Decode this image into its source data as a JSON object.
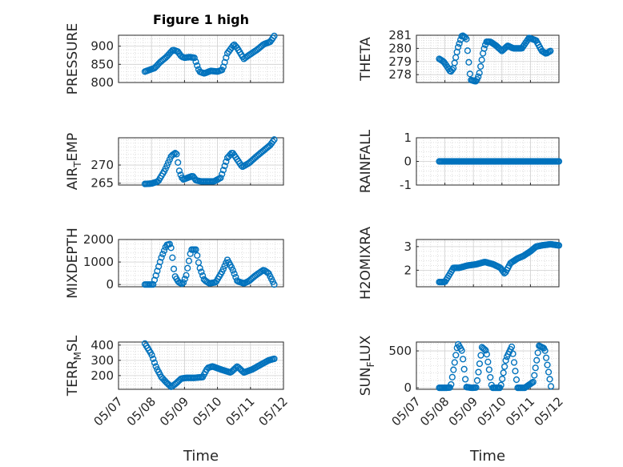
{
  "figure": {
    "title": "Figure 1 high",
    "marker_color": "#0072BD"
  },
  "chart_data": [
    {
      "type": "scatter",
      "id": "pressure",
      "title": "Figure 1 high",
      "ylabel": "PRESSURE",
      "ylim": [
        800,
        930
      ],
      "yticks": [
        800,
        850,
        900
      ],
      "ytick_labels": [
        "800",
        "850",
        "900"
      ],
      "xlim": [
        0,
        5
      ],
      "xticks": [
        0,
        1,
        2,
        3,
        4,
        5
      ],
      "xtick_labels": [
        "05/07",
        "05/08",
        "05/09",
        "05/10",
        "05/11",
        "05/12"
      ],
      "x_label_shown": false,
      "x_knots": [
        0.8,
        1.1,
        1.25,
        1.45,
        1.65,
        1.8,
        1.9,
        2.0,
        2.15,
        2.3,
        2.45,
        2.6,
        2.8,
        3.0,
        3.15,
        3.3,
        3.5,
        3.6,
        3.8,
        3.95,
        4.2,
        4.4,
        4.6,
        4.72
      ],
      "y_knots": [
        830,
        840,
        855,
        870,
        890,
        885,
        872,
        868,
        870,
        868,
        830,
        825,
        832,
        830,
        835,
        880,
        905,
        895,
        865,
        875,
        890,
        905,
        912,
        928
      ]
    },
    {
      "type": "scatter",
      "id": "theta",
      "ylabel": "THETA",
      "ylim": [
        277.4,
        281
      ],
      "yticks": [
        278,
        279,
        280,
        281
      ],
      "ytick_labels": [
        "278",
        "279",
        "280",
        "281"
      ],
      "xlim": [
        0,
        5
      ],
      "xticks": [
        0,
        1,
        2,
        3,
        4,
        5
      ],
      "xtick_labels": [
        "05/07",
        "05/08",
        "05/09",
        "05/10",
        "05/11",
        "05/12"
      ],
      "x_label_shown": false,
      "x_knots": [
        0.8,
        0.95,
        1.05,
        1.2,
        1.3,
        1.45,
        1.6,
        1.75,
        1.9,
        2.05,
        2.1,
        2.2,
        2.35,
        2.45,
        2.6,
        2.8,
        3.0,
        3.2,
        3.4,
        3.7,
        3.95,
        4.2,
        4.4,
        4.55,
        4.7
      ],
      "y_knots": [
        279.2,
        279.0,
        278.7,
        278.2,
        278.5,
        280.0,
        281.0,
        280.8,
        277.6,
        277.5,
        277.5,
        278.0,
        279.8,
        280.5,
        280.5,
        280.2,
        279.8,
        280.2,
        280.0,
        280.0,
        280.8,
        280.6,
        279.8,
        279.6,
        279.8
      ]
    },
    {
      "type": "scatter",
      "id": "air_temp",
      "ylabel": "AIR_TEMP",
      "ylim": [
        264.5,
        277.5
      ],
      "yticks": [
        265,
        270
      ],
      "ytick_labels": [
        "265",
        "270"
      ],
      "xlim": [
        0,
        5
      ],
      "xticks": [
        0,
        1,
        2,
        3,
        4,
        5
      ],
      "xtick_labels": [
        "05/07",
        "05/08",
        "05/09",
        "05/10",
        "05/11",
        "05/12"
      ],
      "x_label_shown": false,
      "x_knots": [
        0.8,
        1.0,
        1.2,
        1.4,
        1.6,
        1.75,
        1.85,
        1.95,
        2.1,
        2.25,
        2.35,
        2.5,
        2.7,
        2.9,
        3.1,
        3.3,
        3.45,
        3.6,
        3.75,
        3.95,
        4.2,
        4.4,
        4.6,
        4.72
      ],
      "y_knots": [
        264.8,
        264.9,
        265.5,
        268.5,
        272.5,
        273.5,
        268.0,
        266.0,
        266.5,
        267.0,
        265.8,
        265.5,
        265.5,
        265.5,
        266.5,
        272.0,
        273.5,
        271.5,
        269.5,
        270.5,
        272.5,
        274.0,
        275.5,
        277.0
      ]
    },
    {
      "type": "scatter",
      "id": "rainfall",
      "ylabel": "RAINFALL",
      "ylim": [
        -1,
        1
      ],
      "yticks": [
        -1,
        0,
        1
      ],
      "ytick_labels": [
        "-1",
        "0",
        "1"
      ],
      "xlim": [
        0,
        5
      ],
      "xticks": [
        0,
        1,
        2,
        3,
        4,
        5
      ],
      "xtick_labels": [
        "05/07",
        "05/08",
        "05/09",
        "05/10",
        "05/11",
        "05/12"
      ],
      "x_label_shown": false,
      "x_knots": [
        0.8,
        5.0
      ],
      "y_knots": [
        0,
        0
      ]
    },
    {
      "type": "scatter",
      "id": "mixdepth",
      "ylabel": "MIXDEPTH",
      "ylim": [
        -100,
        2000
      ],
      "yticks": [
        0,
        1000,
        2000
      ],
      "ytick_labels": [
        "0",
        "1000",
        "2000"
      ],
      "xlim": [
        0,
        5
      ],
      "xticks": [
        0,
        1,
        2,
        3,
        4,
        5
      ],
      "xtick_labels": [
        "05/07",
        "05/08",
        "05/09",
        "05/10",
        "05/11",
        "05/12"
      ],
      "x_label_shown": false,
      "x_knots": [
        0.8,
        1.05,
        1.3,
        1.45,
        1.55,
        1.6,
        1.7,
        1.82,
        1.95,
        2.05,
        2.2,
        2.35,
        2.45,
        2.6,
        2.75,
        2.95,
        3.15,
        3.3,
        3.45,
        3.6,
        3.8,
        3.95,
        4.15,
        4.4,
        4.55,
        4.72
      ],
      "y_knots": [
        0,
        0,
        1200,
        1750,
        1800,
        1600,
        400,
        100,
        20,
        400,
        1550,
        1550,
        800,
        200,
        50,
        100,
        600,
        1100,
        700,
        150,
        50,
        150,
        400,
        650,
        500,
        0
      ]
    },
    {
      "type": "scatter",
      "id": "h2omixra",
      "ylabel": "H2OMIXRA",
      "ylim": [
        1.3,
        3.3
      ],
      "yticks": [
        2,
        3
      ],
      "ytick_labels": [
        "2",
        "3"
      ],
      "xlim": [
        0,
        5
      ],
      "xticks": [
        0,
        1,
        2,
        3,
        4,
        5
      ],
      "xtick_labels": [
        "05/07",
        "05/08",
        "05/09",
        "05/10",
        "05/11",
        "05/12"
      ],
      "x_label_shown": false,
      "x_knots": [
        0.8,
        1.0,
        1.1,
        1.3,
        1.5,
        1.8,
        2.1,
        2.4,
        2.7,
        2.95,
        3.1,
        3.3,
        3.55,
        3.75,
        4.0,
        4.2,
        4.4,
        4.7,
        5.0
      ],
      "y_knots": [
        1.5,
        1.5,
        1.7,
        2.1,
        2.1,
        2.2,
        2.25,
        2.35,
        2.25,
        2.1,
        1.85,
        2.3,
        2.5,
        2.6,
        2.8,
        3.0,
        3.05,
        3.1,
        3.05
      ]
    },
    {
      "type": "scatter",
      "id": "terr_msl",
      "ylabel": "TERR_MSL",
      "ylim": [
        110,
        420
      ],
      "yticks": [
        200,
        300,
        400
      ],
      "ytick_labels": [
        "200",
        "300",
        "400"
      ],
      "xlim": [
        0,
        5
      ],
      "xticks": [
        0,
        1,
        2,
        3,
        4,
        5
      ],
      "xtick_labels": [
        "05/07",
        "05/08",
        "05/09",
        "05/10",
        "05/11",
        "05/12"
      ],
      "x_label_shown": true,
      "xlabel": "Time",
      "x_knots": [
        0.8,
        1.0,
        1.15,
        1.3,
        1.45,
        1.6,
        1.75,
        1.9,
        2.05,
        2.3,
        2.55,
        2.7,
        2.85,
        3.1,
        3.4,
        3.6,
        3.8,
        4.05,
        4.3,
        4.55,
        4.72
      ],
      "y_knots": [
        410,
        340,
        250,
        190,
        155,
        125,
        150,
        180,
        185,
        185,
        190,
        250,
        260,
        240,
        220,
        260,
        220,
        240,
        270,
        300,
        310
      ]
    },
    {
      "type": "scatter",
      "id": "sun_flux",
      "ylabel": "SUN_FLUX",
      "ylim": [
        -20,
        620
      ],
      "yticks": [
        0,
        500
      ],
      "ytick_labels": [
        "0",
        "500"
      ],
      "xlim": [
        0,
        5
      ],
      "xticks": [
        0,
        1,
        2,
        3,
        4,
        5
      ],
      "xtick_labels": [
        "05/07",
        "05/08",
        "05/09",
        "05/10",
        "05/11",
        "05/12"
      ],
      "x_label_shown": true,
      "xlabel": "Time",
      "x_knots": [
        0.8,
        1.05,
        1.2,
        1.45,
        1.6,
        1.75,
        1.95,
        2.1,
        2.3,
        2.45,
        2.65,
        2.95,
        3.15,
        3.35,
        3.55,
        3.8,
        4.1,
        4.3,
        4.5,
        4.72
      ],
      "y_knots": [
        0,
        0,
        5,
        600,
        500,
        10,
        0,
        5,
        550,
        500,
        0,
        0,
        400,
        560,
        0,
        0,
        80,
        570,
        530,
        20
      ]
    }
  ]
}
